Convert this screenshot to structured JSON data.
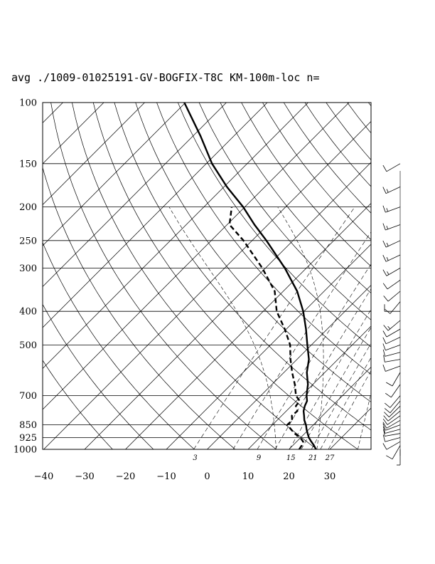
{
  "chart_data": {
    "type": "skew-t",
    "title": "avg ./1009-01025191-GV-BOGFIX-T8C KM-100m-loc n=",
    "pressure_levels": [
      100,
      150,
      200,
      250,
      300,
      400,
      500,
      700,
      850,
      925,
      1000
    ],
    "pressure_labels": [
      "100",
      "150",
      "200",
      "250",
      "300",
      "400",
      "500",
      "700",
      "850",
      "925",
      "1000"
    ],
    "temperature_ticks": [
      -40,
      -30,
      -20,
      -10,
      0,
      10,
      20,
      30
    ],
    "temperature_tick_labels": [
      "−40",
      "−30",
      "−20",
      "−10",
      "0",
      "10",
      "20",
      "30"
    ],
    "xlim": [
      -40,
      40
    ],
    "ylim": [
      1000,
      100
    ],
    "mixing_ratio_labels": [
      "3",
      "9",
      "15",
      "21",
      "27"
    ],
    "dry_adiabats_theta_K": [
      250,
      260,
      270,
      280,
      290,
      300,
      310,
      320,
      330,
      340,
      350,
      360,
      370,
      380,
      390,
      400,
      410,
      420,
      430,
      440,
      450,
      460,
      470,
      480
    ],
    "moist_adiabats_theta_K": [
      290,
      300,
      310,
      320,
      330,
      340
    ],
    "mixing_ratios_gkg": [
      3,
      6,
      9,
      12,
      15,
      18,
      21,
      24,
      27
    ],
    "temperature_profile": [
      {
        "p": 1000,
        "t": 26.6
      },
      {
        "p": 975,
        "t": 25.2
      },
      {
        "p": 950,
        "t": 23.6
      },
      {
        "p": 925,
        "t": 22.0
      },
      {
        "p": 900,
        "t": 20.7
      },
      {
        "p": 875,
        "t": 19.4
      },
      {
        "p": 850,
        "t": 18.2
      },
      {
        "p": 825,
        "t": 16.7
      },
      {
        "p": 800,
        "t": 15.5
      },
      {
        "p": 775,
        "t": 14.2
      },
      {
        "p": 750,
        "t": 13.3
      },
      {
        "p": 725,
        "t": 12.6
      },
      {
        "p": 700,
        "t": 11.2
      },
      {
        "p": 650,
        "t": 8.8
      },
      {
        "p": 600,
        "t": 5.6
      },
      {
        "p": 550,
        "t": 2.9
      },
      {
        "p": 500,
        "t": -1.0
      },
      {
        "p": 450,
        "t": -5.2
      },
      {
        "p": 400,
        "t": -10.2
      },
      {
        "p": 350,
        "t": -16.6
      },
      {
        "p": 300,
        "t": -25.3
      },
      {
        "p": 250,
        "t": -36.5
      },
      {
        "p": 225,
        "t": -43.3
      },
      {
        "p": 200,
        "t": -50.4
      },
      {
        "p": 175,
        "t": -59.3
      },
      {
        "p": 150,
        "t": -68.6
      },
      {
        "p": 125,
        "t": -78.1
      },
      {
        "p": 100,
        "t": -90.3
      }
    ],
    "dewpoint_profile": [
      {
        "p": 1000,
        "t": 22.5
      },
      {
        "p": 975,
        "t": 22.2
      },
      {
        "p": 950,
        "t": 21.6
      },
      {
        "p": 925,
        "t": 19.9
      },
      {
        "p": 900,
        "t": 17.5
      },
      {
        "p": 875,
        "t": 15.6
      },
      {
        "p": 850,
        "t": 13.6
      },
      {
        "p": 825,
        "t": 13.7
      },
      {
        "p": 800,
        "t": 12.5
      },
      {
        "p": 775,
        "t": 12.7
      },
      {
        "p": 750,
        "t": 11.1
      },
      {
        "p": 725,
        "t": 10.8
      },
      {
        "p": 700,
        "t": 8.6
      },
      {
        "p": 650,
        "t": 5.6
      },
      {
        "p": 600,
        "t": 2.0
      },
      {
        "p": 550,
        "t": -1.6
      },
      {
        "p": 500,
        "t": -5.2
      },
      {
        "p": 450,
        "t": -10.4
      },
      {
        "p": 400,
        "t": -16.7
      },
      {
        "p": 350,
        "t": -22.1
      },
      {
        "p": 300,
        "t": -30.8
      },
      {
        "p": 250,
        "t": -42.1
      },
      {
        "p": 225,
        "t": -49.4
      },
      {
        "p": 200,
        "t": -53.2
      }
    ],
    "wind_barbs": [
      {
        "p": 1000,
        "speed_kt": 5,
        "dir_deg": 180
      },
      {
        "p": 975,
        "speed_kt": 8,
        "dir_deg": 210
      },
      {
        "p": 950,
        "speed_kt": 10,
        "dir_deg": 240
      },
      {
        "p": 925,
        "speed_kt": 12,
        "dir_deg": 255
      },
      {
        "p": 900,
        "speed_kt": 12,
        "dir_deg": 260
      },
      {
        "p": 875,
        "speed_kt": 10,
        "dir_deg": 255
      },
      {
        "p": 850,
        "speed_kt": 10,
        "dir_deg": 250
      },
      {
        "p": 825,
        "speed_kt": 8,
        "dir_deg": 240
      },
      {
        "p": 800,
        "speed_kt": 8,
        "dir_deg": 235
      },
      {
        "p": 775,
        "speed_kt": 8,
        "dir_deg": 230
      },
      {
        "p": 750,
        "speed_kt": 8,
        "dir_deg": 225
      },
      {
        "p": 725,
        "speed_kt": 10,
        "dir_deg": 220
      },
      {
        "p": 700,
        "speed_kt": 10,
        "dir_deg": 220
      },
      {
        "p": 650,
        "speed_kt": 10,
        "dir_deg": 215
      },
      {
        "p": 600,
        "speed_kt": 10,
        "dir_deg": 210
      },
      {
        "p": 575,
        "speed_kt": 12,
        "dir_deg": 250
      },
      {
        "p": 550,
        "speed_kt": 12,
        "dir_deg": 260
      },
      {
        "p": 525,
        "speed_kt": 12,
        "dir_deg": 255
      },
      {
        "p": 500,
        "speed_kt": 12,
        "dir_deg": 250
      },
      {
        "p": 475,
        "speed_kt": 12,
        "dir_deg": 245
      },
      {
        "p": 450,
        "speed_kt": 12,
        "dir_deg": 240
      },
      {
        "p": 425,
        "speed_kt": 15,
        "dir_deg": 230
      },
      {
        "p": 400,
        "speed_kt": 12,
        "dir_deg": 270
      },
      {
        "p": 375,
        "speed_kt": 10,
        "dir_deg": 220
      },
      {
        "p": 350,
        "speed_kt": 12,
        "dir_deg": 230
      },
      {
        "p": 325,
        "speed_kt": 12,
        "dir_deg": 235
      },
      {
        "p": 300,
        "speed_kt": 15,
        "dir_deg": 240
      },
      {
        "p": 275,
        "speed_kt": 15,
        "dir_deg": 245
      },
      {
        "p": 250,
        "speed_kt": 15,
        "dir_deg": 245
      },
      {
        "p": 225,
        "speed_kt": 15,
        "dir_deg": 250
      },
      {
        "p": 200,
        "speed_kt": 15,
        "dir_deg": 250
      },
      {
        "p": 175,
        "speed_kt": 15,
        "dir_deg": 245
      },
      {
        "p": 150,
        "speed_kt": 12,
        "dir_deg": 240
      }
    ],
    "grid": true,
    "colors": {
      "lines": "#000000",
      "background": "#ffffff"
    }
  }
}
